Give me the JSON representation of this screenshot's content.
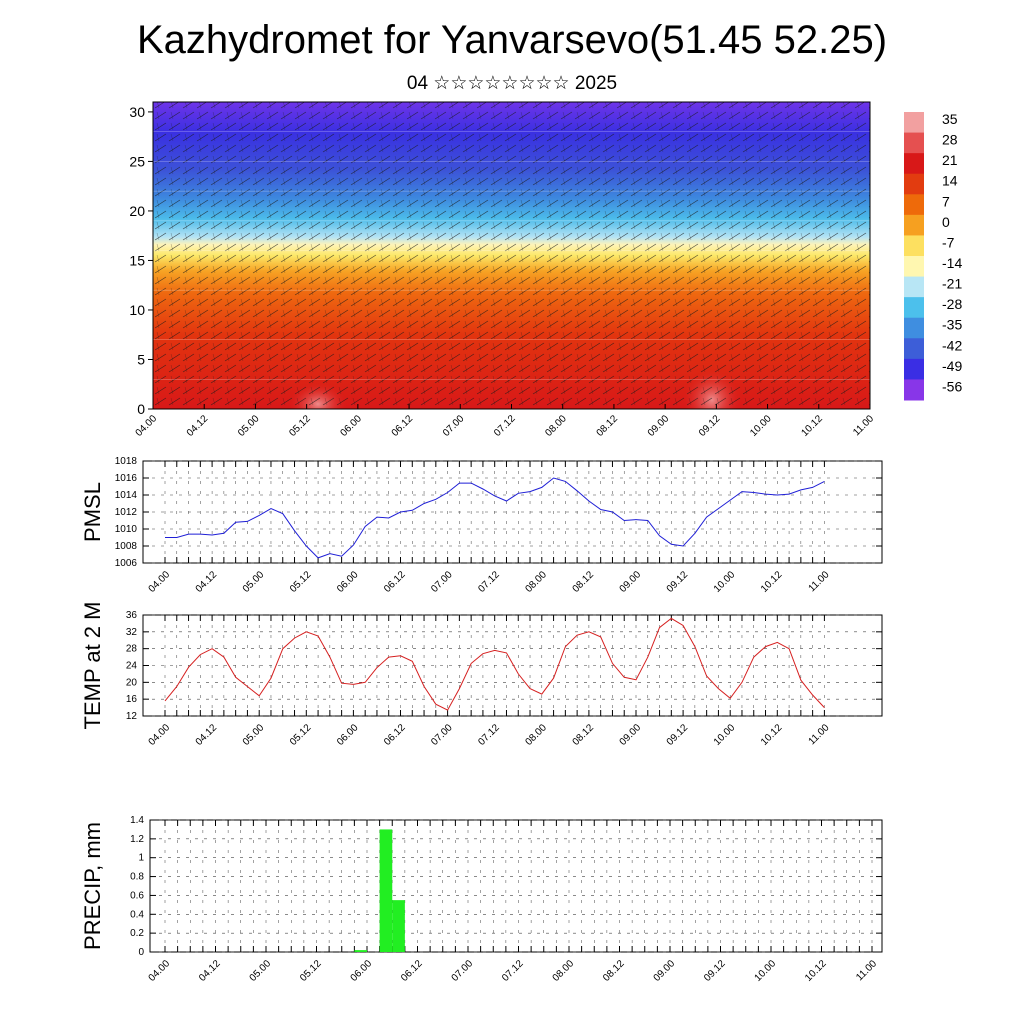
{
  "title": "Kazhydromet for Yanvarsevo(51.45 52.25)",
  "subtitle": "04 ☆☆☆☆☆☆☆☆ 2025",
  "time_labels": [
    "04.00",
    "04.12",
    "05.00",
    "05.12",
    "06.00",
    "06.12",
    "07.00",
    "07.12",
    "08.00",
    "08.12",
    "09.00",
    "09.12",
    "10.00",
    "10.12",
    "11.00"
  ],
  "colors": {
    "pmsl": "#1f1fd6",
    "temp": "#d62020",
    "precip": "#22ee22",
    "grid": "#444444"
  },
  "chart_data": [
    {
      "type": "heatmap",
      "title": "",
      "ylabel": "",
      "y_ticks": [
        0,
        5,
        10,
        15,
        20,
        25,
        30
      ],
      "ylim": [
        0,
        31
      ],
      "colorbar": {
        "labels": [
          "35",
          "28",
          "21",
          "14",
          "7",
          "0",
          "-7",
          "-14",
          "-21",
          "-28",
          "-35",
          "-42",
          "-49",
          "-56"
        ],
        "colors": [
          "#f2a0a0",
          "#e55050",
          "#d81818",
          "#e23c10",
          "#ee6a0a",
          "#f6a020",
          "#fde060",
          "#fff7b0",
          "#b8e6f5",
          "#4cc0ec",
          "#3f8ee0",
          "#3d5ed8",
          "#3a2ee4",
          "#8836e8"
        ]
      },
      "note_levels": [
        0,
        3,
        7,
        12,
        16,
        19,
        22,
        25,
        28,
        31
      ]
    },
    {
      "type": "line",
      "ylabel": "PMSL",
      "ylim": [
        1006,
        1018
      ],
      "y_ticks": [
        1006,
        1008,
        1010,
        1012,
        1014,
        1016,
        1018
      ],
      "x_step_hours": 3,
      "values": [
        1009.0,
        1009.0,
        1009.4,
        1009.4,
        1009.3,
        1009.5,
        1010.8,
        1010.9,
        1011.6,
        1012.4,
        1011.8,
        1009.8,
        1008.0,
        1006.6,
        1007.1,
        1006.8,
        1008.1,
        1010.3,
        1011.4,
        1011.3,
        1012.0,
        1012.2,
        1013.0,
        1013.5,
        1014.3,
        1015.4,
        1015.4,
        1014.7,
        1013.9,
        1013.3,
        1014.2,
        1014.4,
        1014.9,
        1016.0,
        1015.6,
        1014.5,
        1013.3,
        1012.3,
        1012.0,
        1011.0,
        1011.1,
        1011.0,
        1009.2,
        1008.2,
        1008.0,
        1009.5,
        1011.4,
        1012.4,
        1013.4,
        1014.4,
        1014.3,
        1014.1,
        1014.0,
        1014.1,
        1014.6,
        1014.9,
        1015.6
      ]
    },
    {
      "type": "line",
      "ylabel": "TEMP at 2 M",
      "ylim": [
        12,
        36
      ],
      "y_ticks": [
        12,
        16,
        20,
        24,
        28,
        32,
        36
      ],
      "x_step_hours": 3,
      "values": [
        15.6,
        19.0,
        23.6,
        26.6,
        28.0,
        26.0,
        21.2,
        19.0,
        16.8,
        21.0,
        28.0,
        30.5,
        32.0,
        31.0,
        26.0,
        19.8,
        19.5,
        20.0,
        23.5,
        26.0,
        26.3,
        25.0,
        19.0,
        14.8,
        13.4,
        18.5,
        24.5,
        26.8,
        27.6,
        27.0,
        22.0,
        18.5,
        17.2,
        21.0,
        28.5,
        31.2,
        32.0,
        30.8,
        24.5,
        21.2,
        20.6,
        26.0,
        33.0,
        35.2,
        33.5,
        28.5,
        21.5,
        18.5,
        16.2,
        20.0,
        26.0,
        28.5,
        29.5,
        28.0,
        20.5,
        17.0,
        14.0
      ]
    },
    {
      "type": "bar",
      "ylabel": "PRECIP, mm",
      "ylim": [
        0,
        1.4
      ],
      "y_ticks": [
        0.0,
        0.2,
        0.4,
        0.6,
        0.8,
        1.0,
        1.2,
        1.4
      ],
      "bar_width_hours": 3,
      "bars": [
        {
          "start_hour": 45,
          "value": 0.02
        },
        {
          "start_hour": 51,
          "value": 1.3
        },
        {
          "start_hour": 54,
          "value": 0.55
        }
      ]
    }
  ]
}
